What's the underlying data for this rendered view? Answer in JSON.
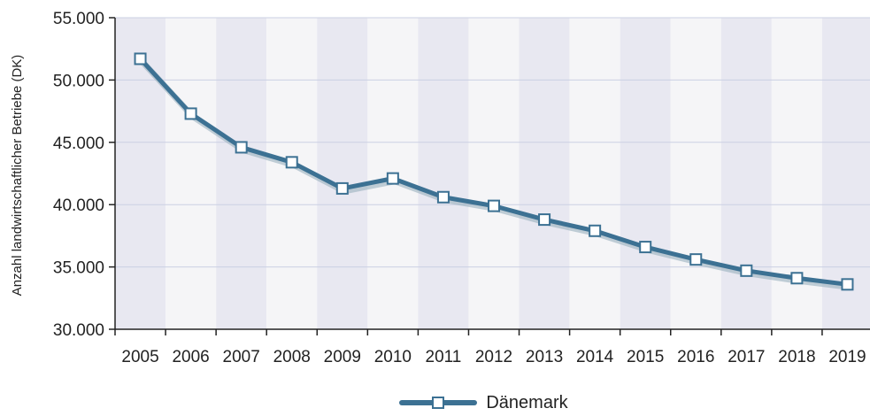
{
  "chart_data": {
    "type": "line",
    "title": "",
    "xlabel": "",
    "ylabel": "Anzahl landwirtschaftlicher Betriebe (DK)",
    "categories": [
      "2005",
      "2006",
      "2007",
      "2008",
      "2009",
      "2010",
      "2011",
      "2012",
      "2013",
      "2014",
      "2015",
      "2016",
      "2017",
      "2018",
      "2019"
    ],
    "series": [
      {
        "name": "Dänemark",
        "values": [
          51700,
          47300,
          44600,
          43400,
          41300,
          42100,
          40600,
          39900,
          38800,
          37900,
          36600,
          35600,
          34700,
          34100,
          33600
        ]
      }
    ],
    "ylim": [
      30000,
      55000
    ],
    "yticks": [
      30000,
      35000,
      40000,
      45000,
      50000,
      55000
    ],
    "ytick_labels": [
      "30.000",
      "35.000",
      "40.000",
      "45.000",
      "50.000",
      "55.000"
    ],
    "grid": true,
    "legend": "bottom",
    "colors": {
      "line": "#3c7193",
      "line_shadow": "#9ab0be",
      "band_dark": "#e8e8f1",
      "band_light": "#f5f5f7",
      "grid": "#cbd0e3"
    }
  }
}
